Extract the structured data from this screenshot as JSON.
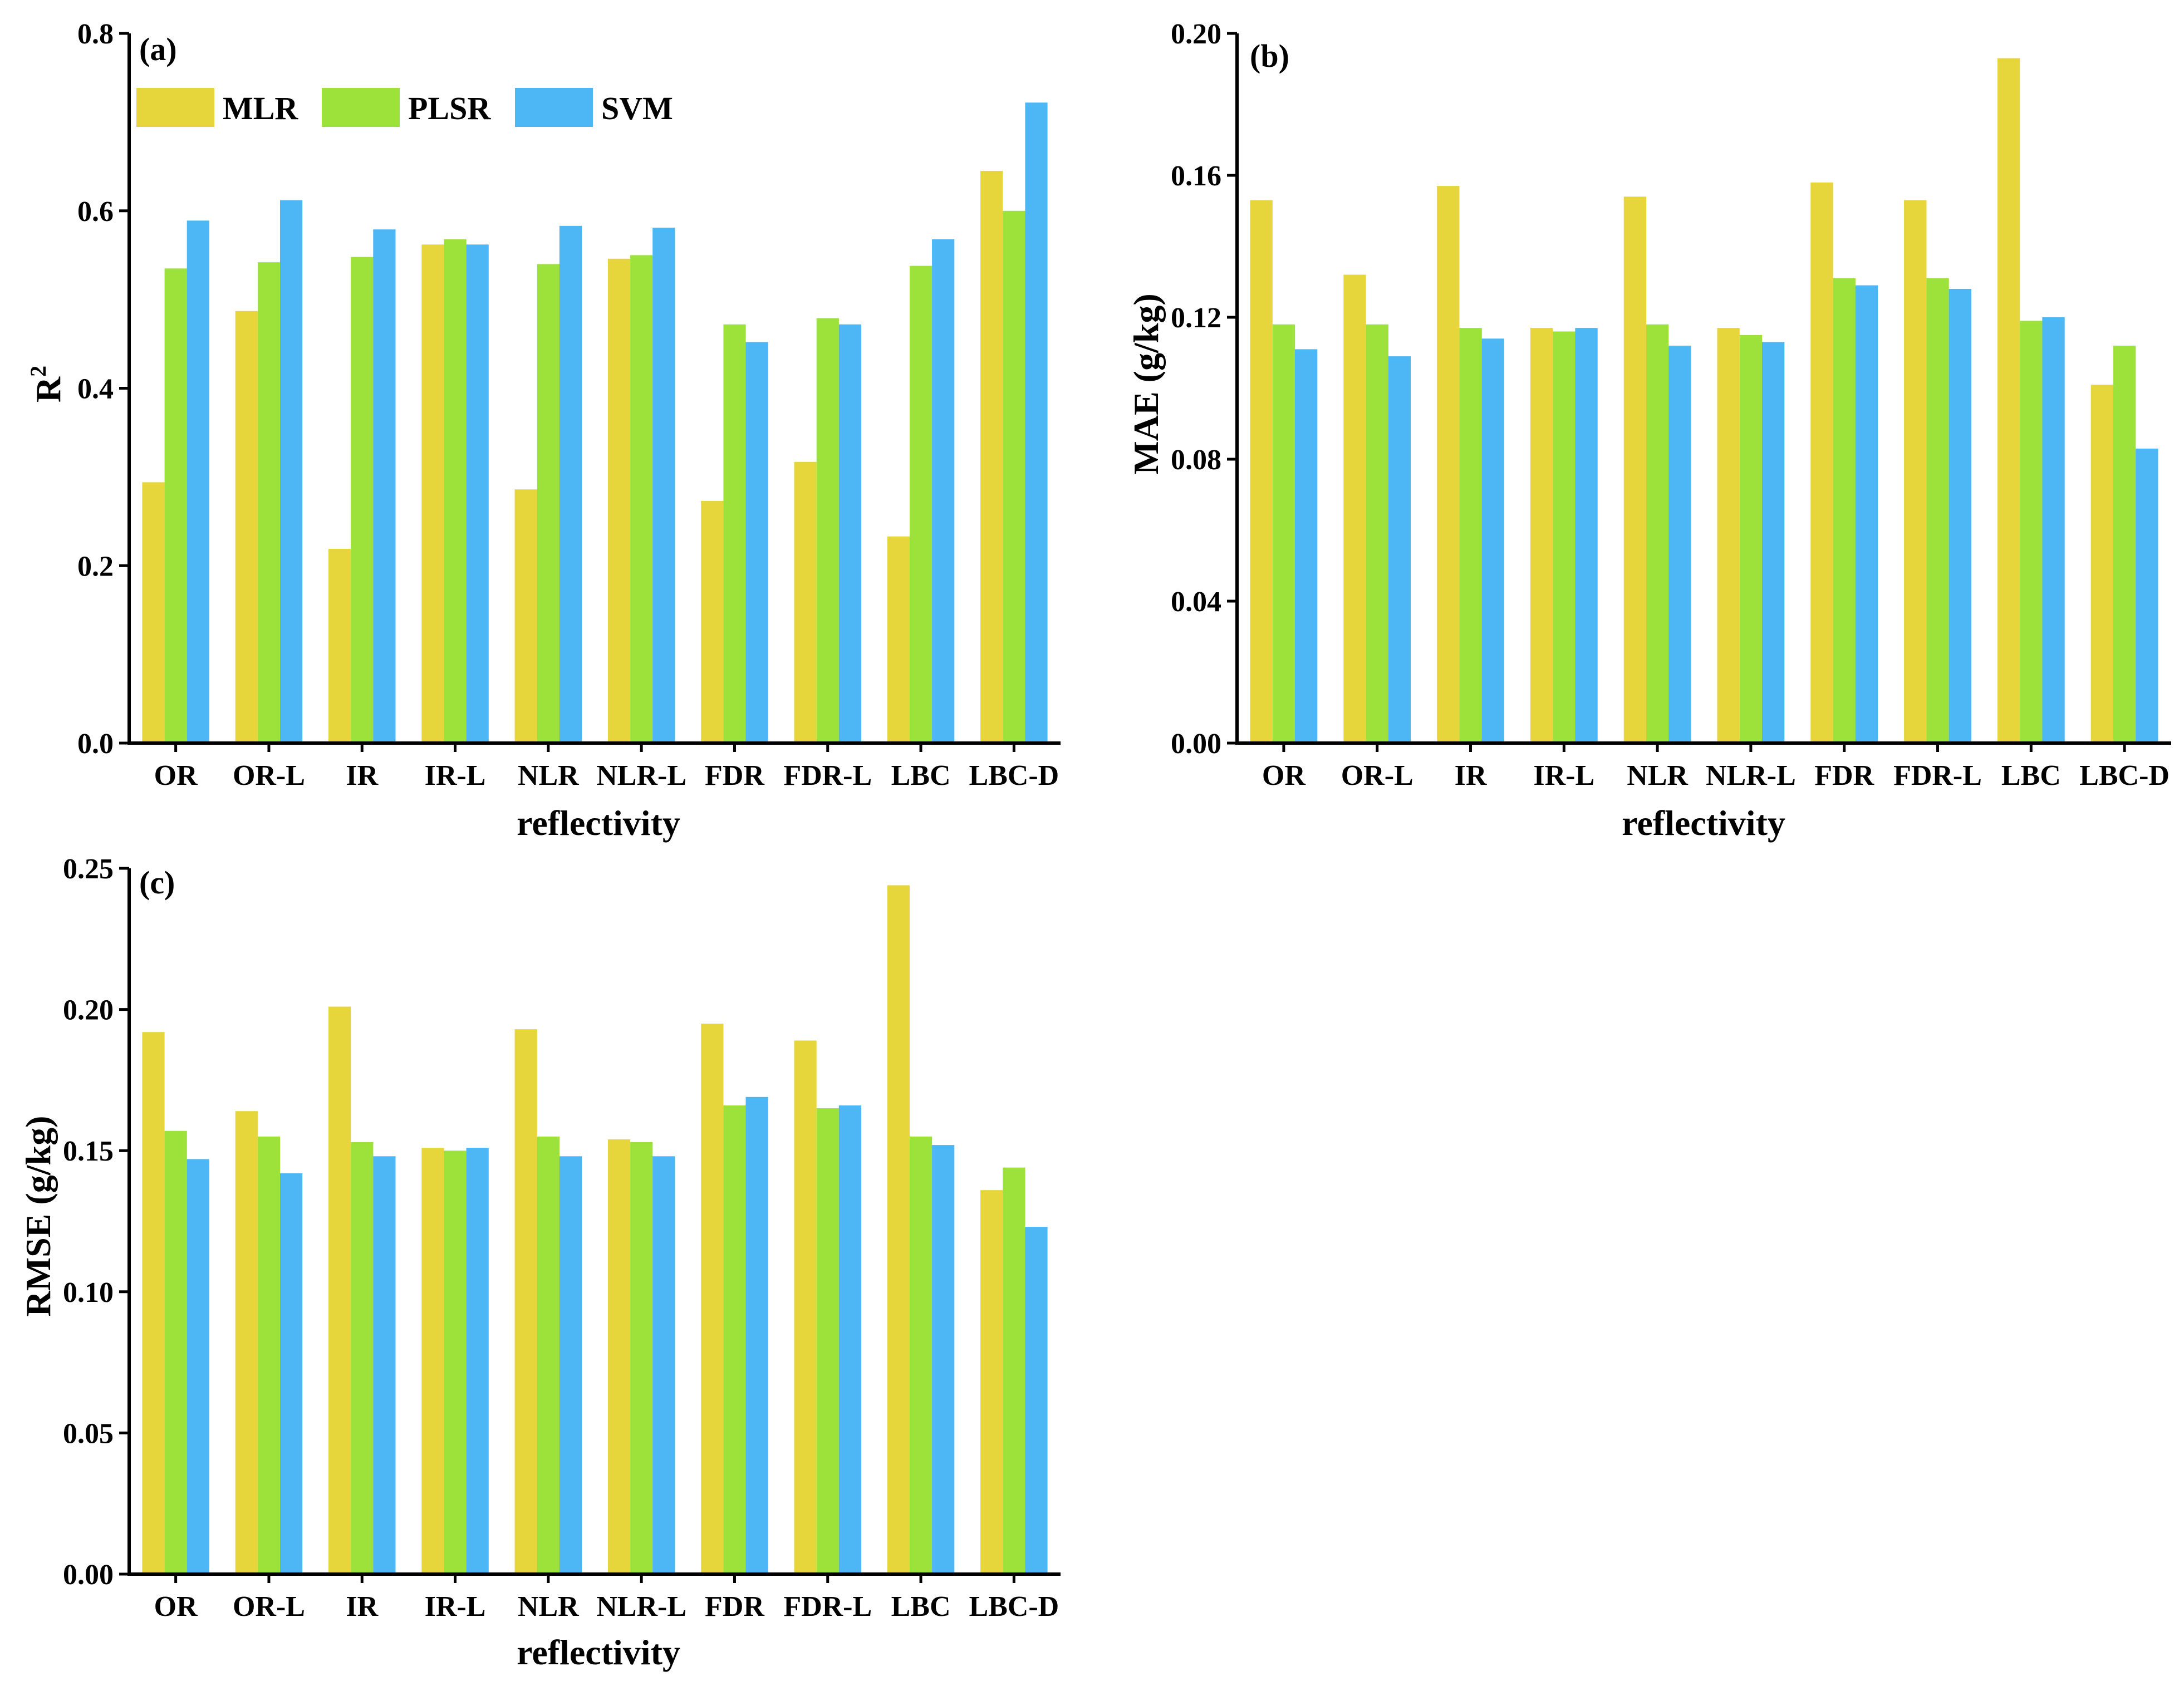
{
  "colors": {
    "MLR": "#e6d63c",
    "PLSR": "#9de23a",
    "SVM": "#4db7f5"
  },
  "legend": [
    {
      "name": "MLR",
      "color_key": "MLR"
    },
    {
      "name": "PLSR",
      "color_key": "PLSR"
    },
    {
      "name": "SVM",
      "color_key": "SVM"
    }
  ],
  "chart_data": [
    {
      "type": "bar",
      "panel_label": "(a)",
      "xlabel": "reflectivity",
      "ylabel_main": "R",
      "ylabel_sup": "2",
      "ylim": [
        0,
        0.8
      ],
      "yticks": [
        "0.0",
        "0.2",
        "0.4",
        "0.6",
        "0.8"
      ],
      "categories": [
        "OR",
        "OR-L",
        "IR",
        "IR-L",
        "NLR",
        "NLR-L",
        "FDR",
        "FDR-L",
        "LBC",
        "LBC-D"
      ],
      "series": [
        {
          "name": "MLR",
          "values": [
            0.294,
            0.487,
            0.219,
            0.562,
            0.286,
            0.546,
            0.273,
            0.317,
            0.233,
            0.645
          ]
        },
        {
          "name": "PLSR",
          "values": [
            0.535,
            0.542,
            0.548,
            0.568,
            0.54,
            0.55,
            0.472,
            0.479,
            0.538,
            0.6
          ]
        },
        {
          "name": "SVM",
          "values": [
            0.589,
            0.612,
            0.579,
            0.562,
            0.583,
            0.581,
            0.452,
            0.472,
            0.568,
            0.722
          ]
        }
      ]
    },
    {
      "type": "bar",
      "panel_label": "(b)",
      "xlabel": "reflectivity",
      "ylabel_main": "MAE (g/kg)",
      "ylabel_sup": "",
      "ylim": [
        0,
        0.2
      ],
      "yticks": [
        "0.00",
        "0.04",
        "0.08",
        "0.12",
        "0.16",
        "0.20"
      ],
      "categories": [
        "OR",
        "OR-L",
        "IR",
        "IR-L",
        "NLR",
        "NLR-L",
        "FDR",
        "FDR-L",
        "LBC",
        "LBC-D"
      ],
      "series": [
        {
          "name": "MLR",
          "values": [
            0.153,
            0.132,
            0.157,
            0.117,
            0.154,
            0.117,
            0.158,
            0.153,
            0.193,
            0.101
          ]
        },
        {
          "name": "PLSR",
          "values": [
            0.118,
            0.118,
            0.117,
            0.116,
            0.118,
            0.115,
            0.131,
            0.131,
            0.119,
            0.112
          ]
        },
        {
          "name": "SVM",
          "values": [
            0.111,
            0.109,
            0.114,
            0.117,
            0.112,
            0.113,
            0.129,
            0.128,
            0.12,
            0.083
          ]
        }
      ]
    },
    {
      "type": "bar",
      "panel_label": "(c)",
      "xlabel": "reflectivity",
      "ylabel_main": "RMSE (g/kg)",
      "ylabel_sup": "",
      "ylim": [
        0,
        0.25
      ],
      "yticks": [
        "0.00",
        "0.05",
        "0.10",
        "0.15",
        "0.20",
        "0.25"
      ],
      "categories": [
        "OR",
        "OR-L",
        "IR",
        "IR-L",
        "NLR",
        "NLR-L",
        "FDR",
        "FDR-L",
        "LBC",
        "LBC-D"
      ],
      "series": [
        {
          "name": "MLR",
          "values": [
            0.192,
            0.164,
            0.201,
            0.151,
            0.193,
            0.154,
            0.195,
            0.189,
            0.244,
            0.136
          ]
        },
        {
          "name": "PLSR",
          "values": [
            0.157,
            0.155,
            0.153,
            0.15,
            0.155,
            0.153,
            0.166,
            0.165,
            0.155,
            0.144
          ]
        },
        {
          "name": "SVM",
          "values": [
            0.147,
            0.142,
            0.148,
            0.151,
            0.148,
            0.148,
            0.169,
            0.166,
            0.152,
            0.123
          ]
        }
      ]
    }
  ]
}
